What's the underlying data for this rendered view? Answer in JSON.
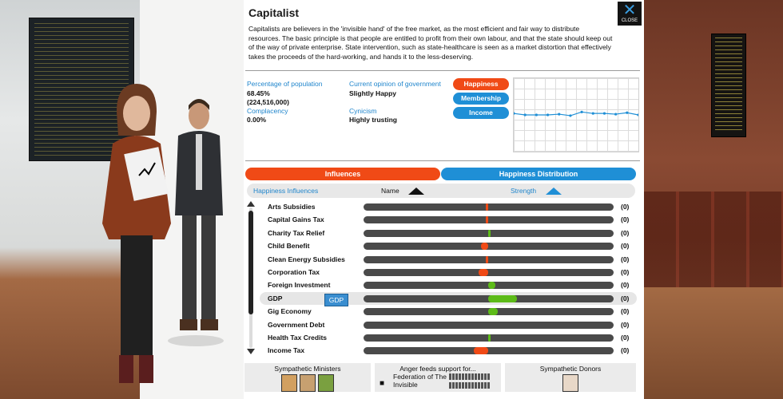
{
  "group": {
    "title": "Capitalist",
    "description": "Capitalists are believers in the 'invisible hand' of the free market, as the most efficient and fair way to distribute resources. The basic principle is that people are entitled to profit from their own labour, and that the state should keep out of the way of private enterprise. State intervention, such as state-healthcare is seen as a market distortion that effectively takes the proceeds of the hard-working, and hands it to the less-deserving.",
    "close_label": "CLOSE"
  },
  "stats": {
    "population_label": "Percentage of population",
    "population_pct": "68.45%",
    "population_count": "(224,516,000)",
    "complacency_label": "Complacency",
    "complacency_value": "0.00%",
    "opinion_label": "Current opinion of government",
    "opinion_value": "Slightly Happy",
    "cynicism_label": "Cynicism",
    "cynicism_value": "Highly trusting"
  },
  "chart_buttons": [
    "Happiness",
    "Membership",
    "Income"
  ],
  "chart_data": {
    "type": "line",
    "series": [
      {
        "values": [
          0.52,
          0.5,
          0.5,
          0.5,
          0.51,
          0.49,
          0.54,
          0.52,
          0.52,
          0.51,
          0.53,
          0.5
        ]
      }
    ],
    "ylim": [
      0,
      1
    ],
    "grid": true
  },
  "tabs": {
    "influences": "Influences",
    "distribution": "Happiness Distribution"
  },
  "table_header": {
    "section": "Happiness Influences",
    "name_col": "Name",
    "strength_col": "Strength"
  },
  "influences": [
    {
      "name": "Arts Subsidies",
      "value": "(0)",
      "strength": -0.01
    },
    {
      "name": "Capital Gains Tax",
      "value": "(0)",
      "strength": -0.01
    },
    {
      "name": "Charity Tax Relief",
      "value": "(0)",
      "strength": 0.01
    },
    {
      "name": "Child Benefit",
      "value": "(0)",
      "strength": -0.03
    },
    {
      "name": "Clean Energy Subsidies",
      "value": "(0)",
      "strength": -0.01
    },
    {
      "name": "Corporation Tax",
      "value": "(0)",
      "strength": -0.04
    },
    {
      "name": "Foreign Investment",
      "value": "(0)",
      "strength": 0.03
    },
    {
      "name": "GDP",
      "value": "(0)",
      "strength": 0.12
    },
    {
      "name": "Gig Economy",
      "value": "(0)",
      "strength": 0.04
    },
    {
      "name": "Government Debt",
      "value": "(0)",
      "strength": 0.0
    },
    {
      "name": "Health Tax Credits",
      "value": "(0)",
      "strength": 0.01
    },
    {
      "name": "Income Tax",
      "value": "(0)",
      "strength": -0.06
    }
  ],
  "tooltip": "GDP",
  "bottom": {
    "ministers_label": "Sympathetic Ministers",
    "anger_label": "Anger feeds support for...",
    "anger_group": "Federation of The Invisible",
    "donors_label": "Sympathetic Donors"
  },
  "colors": {
    "accent_red": "#f04a16",
    "accent_blue": "#1f8fd6",
    "positive": "#5dbb18",
    "negative": "#f04a16"
  }
}
